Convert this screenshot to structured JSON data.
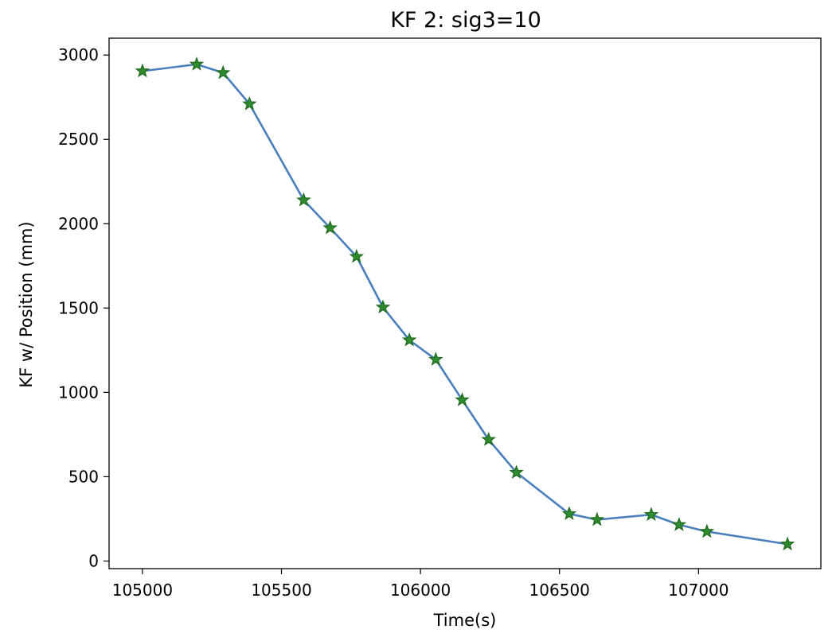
{
  "chart_data": {
    "type": "line",
    "title": "KF 2: sig3=10",
    "xlabel": "Time(s)",
    "ylabel": "KF w/ Position (mm)",
    "xlim": [
      104880,
      107440
    ],
    "ylim": [
      -45,
      3100
    ],
    "xticks": [
      105000,
      105500,
      106000,
      106500,
      107000
    ],
    "yticks": [
      0,
      500,
      1000,
      1500,
      2000,
      2500,
      3000
    ],
    "grid": false,
    "series": [
      {
        "line_color": "#4a7fbd",
        "marker": "star",
        "marker_color": "#2e8b2e",
        "marker_edge_color": "#1f6b1f",
        "x": [
          105000,
          105195,
          105290,
          105385,
          105580,
          105675,
          105770,
          105865,
          105960,
          106055,
          106150,
          106245,
          106345,
          106535,
          106635,
          106830,
          106930,
          107030,
          107320
        ],
        "y": [
          2905,
          2945,
          2895,
          2710,
          2140,
          1975,
          1805,
          1505,
          1310,
          1195,
          955,
          720,
          525,
          280,
          245,
          275,
          215,
          175,
          100
        ]
      }
    ]
  }
}
